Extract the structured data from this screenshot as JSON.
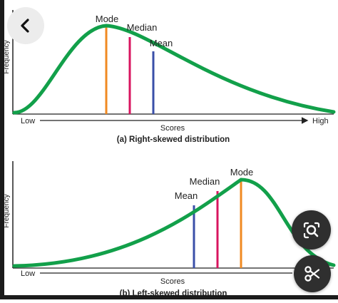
{
  "chart_data": [
    {
      "type": "line",
      "title": "(a) Right-skewed distribution",
      "xlabel": "Scores",
      "ylabel": "Frequency",
      "x_axis_low": "Low",
      "x_axis_high": "High",
      "series_color": "#12a04a",
      "markers": [
        {
          "label": "Mode",
          "color": "#f08a22"
        },
        {
          "label": "Median",
          "color": "#d8145f"
        },
        {
          "label": "Mean",
          "color": "#3a4fa8"
        }
      ],
      "skew": "right"
    },
    {
      "type": "line",
      "title": "(b) Left-skewed distribution",
      "xlabel": "Scores",
      "ylabel": "Frequency",
      "x_axis_low": "Low",
      "series_color": "#12a04a",
      "markers": [
        {
          "label": "Mean",
          "color": "#3a4fa8"
        },
        {
          "label": "Median",
          "color": "#d8145f"
        },
        {
          "label": "Mode",
          "color": "#f08a22"
        }
      ],
      "skew": "left"
    }
  ],
  "overlay": {
    "back_icon": "chevron-left-icon",
    "lens_icon": "lens-search-icon",
    "scissors_icon": "scissors-icon"
  },
  "colors": {
    "axis": "#222222",
    "overlay_button": "#2f2f2f",
    "back_button": "#ececec"
  }
}
